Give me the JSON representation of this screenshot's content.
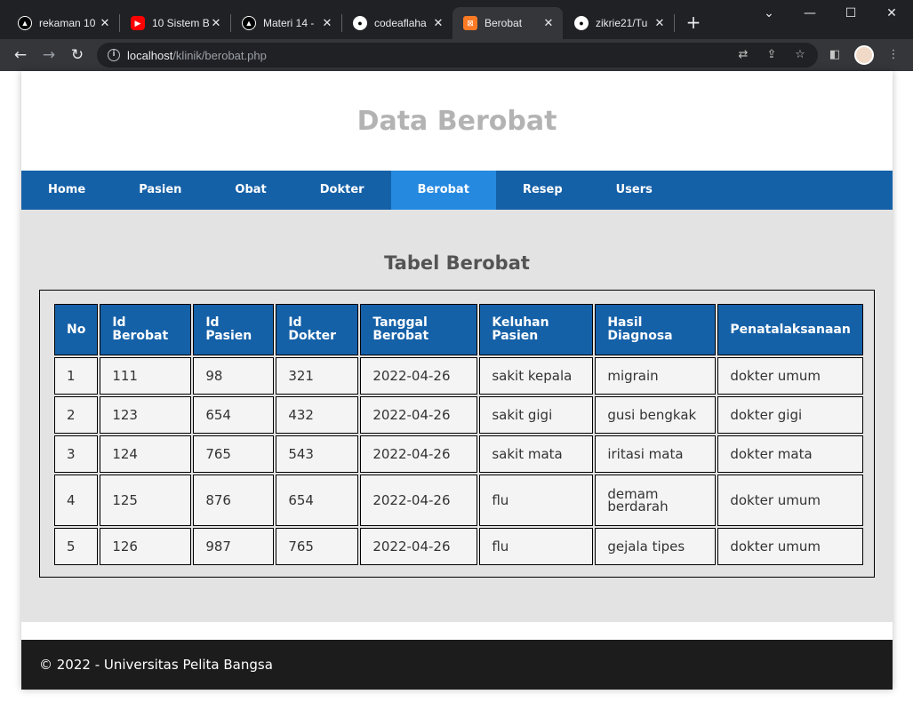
{
  "browser": {
    "tabs": [
      {
        "title": "rekaman 10",
        "icon": "triangle-app-icon",
        "color": "#000000"
      },
      {
        "title": "10 Sistem B",
        "icon": "youtube-icon",
        "color": "#ff0000"
      },
      {
        "title": "Materi 14 -",
        "icon": "triangle-app-icon",
        "color": "#000000"
      },
      {
        "title": "codeaflaha",
        "icon": "github-icon",
        "color": "#ffffff"
      },
      {
        "title": "Berobat",
        "icon": "xampp-icon",
        "color": "#fb7a24"
      },
      {
        "title": "zikrie21/Tu",
        "icon": "github-icon",
        "color": "#ffffff"
      }
    ],
    "url_host": "localhost",
    "url_path": "/klinik/berobat.php"
  },
  "page": {
    "title": "Data Berobat",
    "nav": [
      "Home",
      "Pasien",
      "Obat",
      "Dokter",
      "Berobat",
      "Resep",
      "Users"
    ],
    "active_nav": "Berobat",
    "table_title": "Tabel Berobat",
    "columns": [
      "No",
      "Id Berobat",
      "Id Pasien",
      "Id Dokter",
      "Tanggal Berobat",
      "Keluhan Pasien",
      "Hasil Diagnosa",
      "Penatalaksanaan"
    ],
    "rows": [
      [
        "1",
        "111",
        "98",
        "321",
        "2022-04-26",
        "sakit kepala",
        "migrain",
        "dokter umum"
      ],
      [
        "2",
        "123",
        "654",
        "432",
        "2022-04-26",
        "sakit gigi",
        "gusi bengkak",
        "dokter gigi"
      ],
      [
        "3",
        "124",
        "765",
        "543",
        "2022-04-26",
        "sakit mata",
        "iritasi mata",
        "dokter mata"
      ],
      [
        "4",
        "125",
        "876",
        "654",
        "2022-04-26",
        "flu",
        "demam berdarah",
        "dokter umum"
      ],
      [
        "5",
        "126",
        "987",
        "765",
        "2022-04-26",
        "flu",
        "gejala tipes",
        "dokter umum"
      ]
    ],
    "footer": "© 2022 - Universitas Pelita Bangsa"
  }
}
